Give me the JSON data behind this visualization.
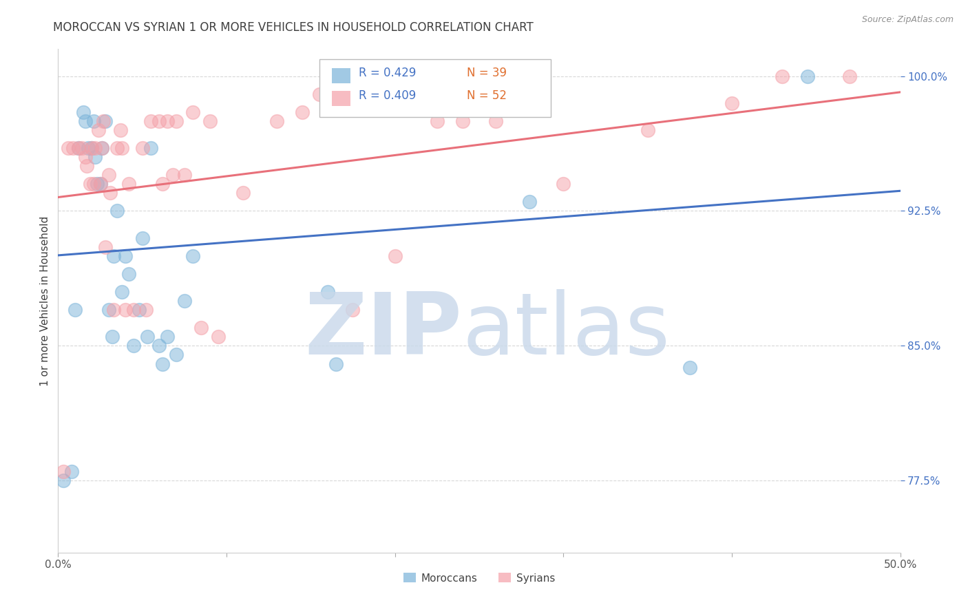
{
  "title": "MOROCCAN VS SYRIAN 1 OR MORE VEHICLES IN HOUSEHOLD CORRELATION CHART",
  "source": "Source: ZipAtlas.com",
  "ylabel": "1 or more Vehicles in Household",
  "ytick_labels": [
    "77.5%",
    "85.0%",
    "92.5%",
    "100.0%"
  ],
  "ytick_values": [
    0.775,
    0.85,
    0.925,
    1.0
  ],
  "xlim": [
    0.0,
    0.5
  ],
  "ylim": [
    0.735,
    1.015
  ],
  "moroccan_color": "#7ab3d9",
  "syrian_color": "#f4a0a8",
  "moroccan_line_color": "#4472c4",
  "syrian_line_color": "#e8707a",
  "moroccan_R": 0.429,
  "moroccan_N": 39,
  "syrian_R": 0.409,
  "syrian_N": 52,
  "moroccan_x": [
    0.003,
    0.008,
    0.01,
    0.012,
    0.015,
    0.016,
    0.018,
    0.02,
    0.021,
    0.022,
    0.023,
    0.025,
    0.026,
    0.028,
    0.03,
    0.032,
    0.033,
    0.035,
    0.038,
    0.04,
    0.042,
    0.045,
    0.048,
    0.05,
    0.053,
    0.055,
    0.06,
    0.062,
    0.065,
    0.07,
    0.075,
    0.08,
    0.16,
    0.165,
    0.17,
    0.175,
    0.28,
    0.375,
    0.445
  ],
  "moroccan_y": [
    0.775,
    0.78,
    0.87,
    0.96,
    0.98,
    0.975,
    0.96,
    0.96,
    0.975,
    0.955,
    0.94,
    0.94,
    0.96,
    0.975,
    0.87,
    0.855,
    0.9,
    0.925,
    0.88,
    0.9,
    0.89,
    0.85,
    0.87,
    0.91,
    0.855,
    0.96,
    0.85,
    0.84,
    0.855,
    0.845,
    0.875,
    0.9,
    0.88,
    0.84,
    1.0,
    1.0,
    0.93,
    0.838,
    1.0
  ],
  "syrian_x": [
    0.003,
    0.006,
    0.009,
    0.012,
    0.014,
    0.016,
    0.017,
    0.019,
    0.02,
    0.021,
    0.022,
    0.024,
    0.025,
    0.026,
    0.027,
    0.028,
    0.03,
    0.031,
    0.033,
    0.035,
    0.037,
    0.038,
    0.04,
    0.042,
    0.045,
    0.05,
    0.052,
    0.055,
    0.06,
    0.062,
    0.065,
    0.068,
    0.07,
    0.075,
    0.08,
    0.085,
    0.09,
    0.095,
    0.11,
    0.13,
    0.145,
    0.155,
    0.175,
    0.2,
    0.225,
    0.24,
    0.26,
    0.3,
    0.35,
    0.4,
    0.43,
    0.47
  ],
  "syrian_y": [
    0.78,
    0.96,
    0.96,
    0.96,
    0.96,
    0.955,
    0.95,
    0.94,
    0.96,
    0.94,
    0.96,
    0.97,
    0.94,
    0.96,
    0.975,
    0.905,
    0.945,
    0.935,
    0.87,
    0.96,
    0.97,
    0.96,
    0.87,
    0.94,
    0.87,
    0.96,
    0.87,
    0.975,
    0.975,
    0.94,
    0.975,
    0.945,
    0.975,
    0.945,
    0.98,
    0.86,
    0.975,
    0.855,
    0.935,
    0.975,
    0.98,
    0.99,
    0.87,
    0.9,
    0.975,
    0.975,
    0.975,
    0.94,
    0.97,
    0.985,
    1.0,
    1.0
  ],
  "watermark_zip_color": "#c8d8ea",
  "watermark_atlas_color": "#c8d8ea",
  "legend_moroccan_label": "Moroccans",
  "legend_syrian_label": "Syrians",
  "R_color": "#4472c4",
  "N_color": "#e07030",
  "grid_color": "#d8d8d8",
  "tick_color_y": "#4472c4",
  "title_color": "#404040",
  "source_color": "#909090"
}
